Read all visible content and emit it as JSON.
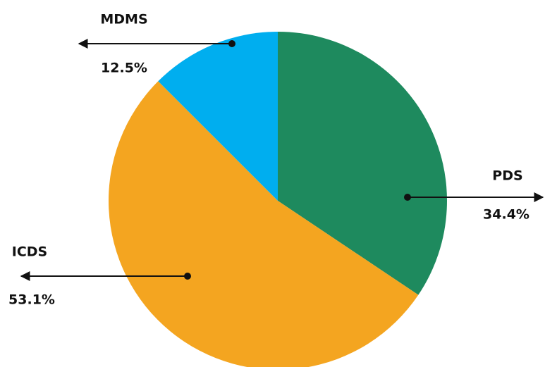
{
  "chart_data": {
    "type": "pie",
    "categories": [
      "PDS",
      "ICDS",
      "MDMS"
    ],
    "values": [
      34.4,
      53.1,
      12.5
    ],
    "value_labels": [
      "34.4%",
      "53.1%",
      "12.5%"
    ],
    "colors": [
      "#1e8a5e",
      "#f4a520",
      "#00aeef"
    ]
  }
}
